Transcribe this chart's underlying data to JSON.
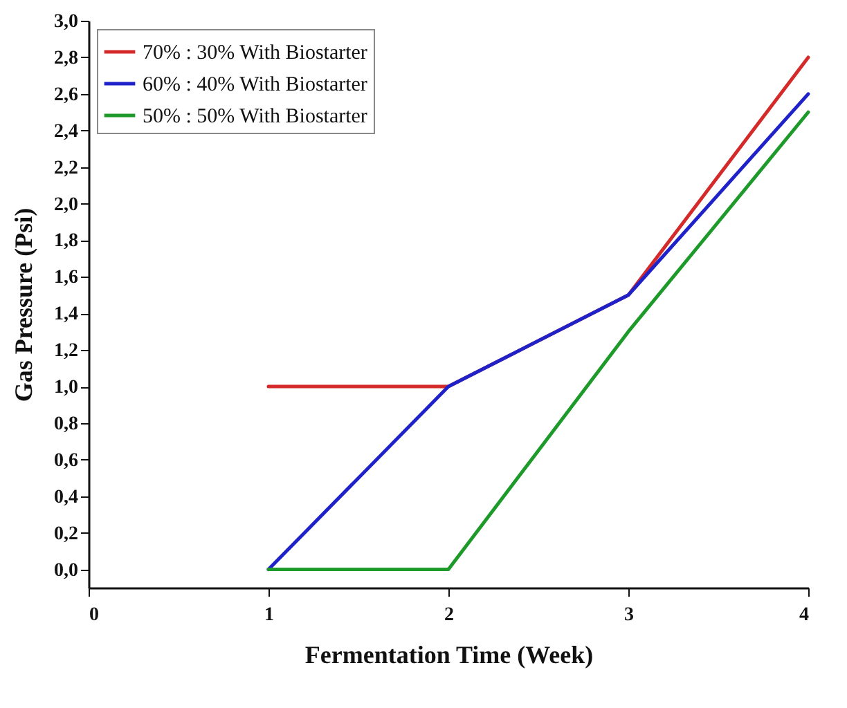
{
  "chart_data": {
    "type": "line",
    "xlabel": "Fermentation Time (Week)",
    "ylabel": "Gas Pressure (Psi)",
    "x": [
      1,
      2,
      3,
      4
    ],
    "series": [
      {
        "name": "70% : 30% With Biostarter",
        "color": "#d42a2a",
        "values": [
          1,
          1,
          1.5,
          2.8
        ]
      },
      {
        "name": "60% : 40% With Biostarter",
        "color": "#1f22c8",
        "values": [
          0,
          1,
          1.5,
          2.6
        ]
      },
      {
        "name": "50% : 50% With Biostarter",
        "color": "#1e9a2a",
        "values": [
          0,
          0,
          1.3,
          2.5
        ]
      }
    ],
    "xlim": [
      0,
      4
    ],
    "xticks": [
      0,
      1,
      2,
      3,
      4
    ],
    "ylim": [
      -0.1,
      3.0
    ],
    "yticks": [
      {
        "value": 0,
        "label": "0,0"
      },
      {
        "value": 0.2,
        "label": "0,2"
      },
      {
        "value": 0.4,
        "label": "0,4"
      },
      {
        "value": 0.6,
        "label": "0,6"
      },
      {
        "value": 0.8,
        "label": "0,8"
      },
      {
        "value": 1,
        "label": "1,0"
      },
      {
        "value": 1.2,
        "label": "1,2"
      },
      {
        "value": 1.4,
        "label": "1,4"
      },
      {
        "value": 1.6,
        "label": "1,6"
      },
      {
        "value": 1.8,
        "label": "1,8"
      },
      {
        "value": 2,
        "label": "2,0"
      },
      {
        "value": 2.2,
        "label": "2,2"
      },
      {
        "value": 2.4,
        "label": "2,4"
      },
      {
        "value": 2.6,
        "label": "2,6"
      },
      {
        "value": 2.8,
        "label": "2,8"
      },
      {
        "value": 3,
        "label": "3,0"
      }
    ],
    "legend": "top left",
    "grid": false,
    "marker": "none",
    "line_style": "solid"
  }
}
